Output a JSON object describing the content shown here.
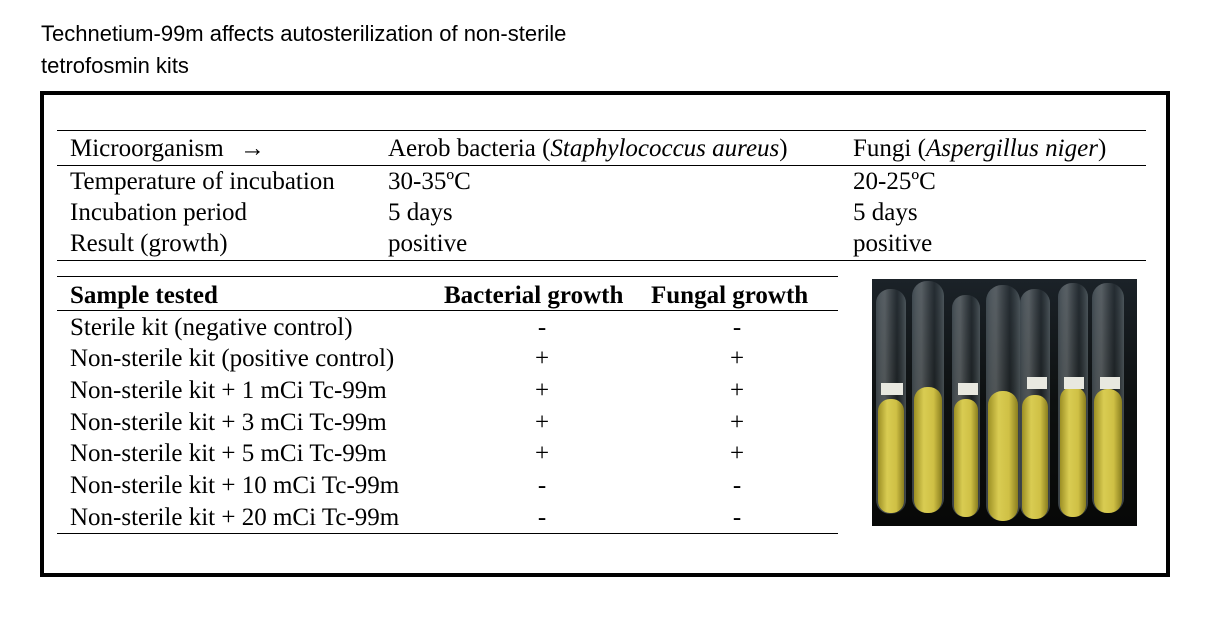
{
  "title_line1": "Technetium-99m affects autosterilization of non-sterile",
  "title_line2": "tetrofosmin kits",
  "conditions_table": {
    "header": {
      "label": "Microorganism",
      "arrow": "→",
      "bacteria_prefix": "Aerob bacteria (",
      "bacteria_species": "Staphylococcus aureus",
      "bacteria_suffix": ")",
      "fungi_prefix": "Fungi (",
      "fungi_species": "Aspergillus niger",
      "fungi_suffix": ")"
    },
    "rows": [
      {
        "label": "Temperature of incubation",
        "bacteria": "30-35ºC",
        "fungi": "20-25ºC"
      },
      {
        "label": "Incubation period",
        "bacteria": "5 days",
        "fungi": "5 days"
      },
      {
        "label": "Result  (growth)",
        "bacteria": "positive",
        "fungi": "positive"
      }
    ]
  },
  "results_table": {
    "headers": [
      "Sample tested",
      "Bacterial growth",
      "Fungal growth"
    ],
    "rows": [
      {
        "sample": "Sterile kit (negative control)",
        "bacterial": "-",
        "fungal": "-"
      },
      {
        "sample": "Non-sterile kit (positive control)",
        "bacterial": "+",
        "fungal": "+"
      },
      {
        "sample": "Non-sterile kit + 1 mCi Tc-99m",
        "bacterial": "+",
        "fungal": "+"
      },
      {
        "sample": "Non-sterile kit + 3 mCi Tc-99m",
        "bacterial": "+",
        "fungal": "+"
      },
      {
        "sample": "Non-sterile kit + 5 mCi Tc-99m",
        "bacterial": "+",
        "fungal": "+"
      },
      {
        "sample": "Non-sterile kit + 10 mCi Tc-99m",
        "bacterial": "-",
        "fungal": "-"
      },
      {
        "sample": "Non-sterile kit + 20 mCi Tc-99m",
        "bacterial": "-",
        "fungal": "-"
      }
    ]
  },
  "colors": {
    "tube_liquid": "#c9bb3a",
    "photo_background": "#0c0e0c"
  }
}
